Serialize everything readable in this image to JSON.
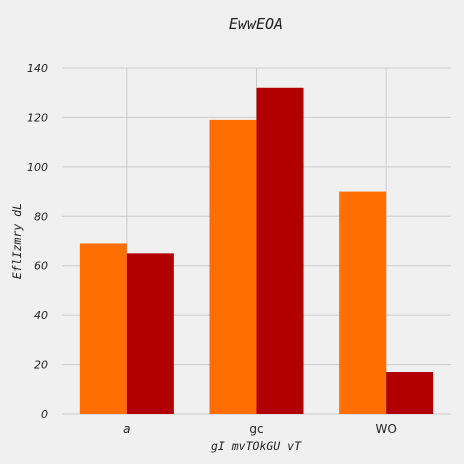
{
  "chart_data": {
    "type": "bar",
    "title": "EwwEOA",
    "xlabel": "gI mvTOkGU vT",
    "ylabel": "EflIzmry dL",
    "categories": [
      "a",
      "gc",
      "WO"
    ],
    "series": [
      {
        "values": [
          69,
          119,
          90
        ],
        "color": "#ff6e00"
      },
      {
        "values": [
          65,
          132,
          17
        ],
        "color": "#b20000"
      }
    ],
    "ylim": [
      0,
      140
    ],
    "yticks": [
      0,
      20,
      40,
      60,
      80,
      100,
      120,
      140
    ],
    "grid": true,
    "legend": "none"
  }
}
